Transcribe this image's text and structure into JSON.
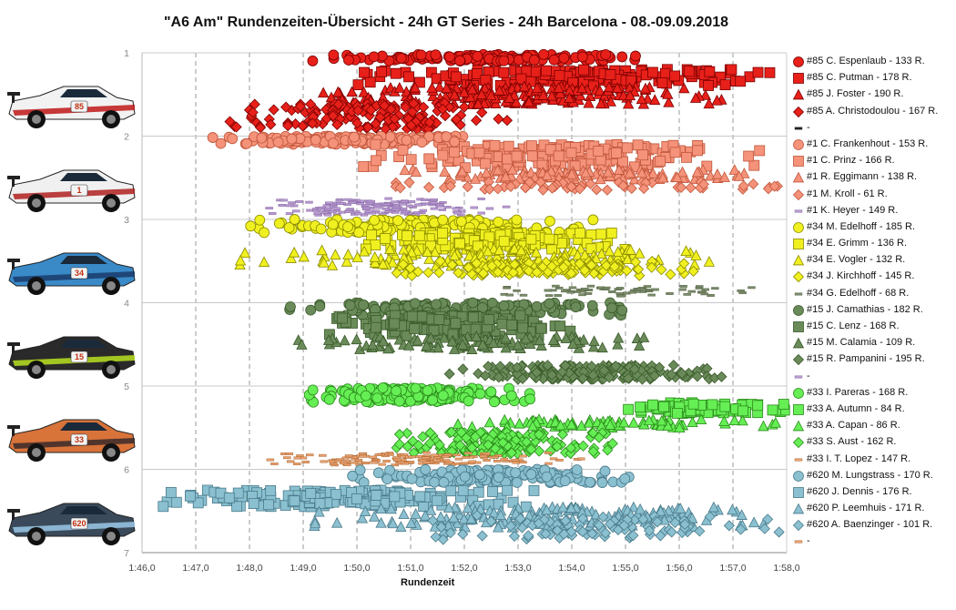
{
  "title": "\"A6 Am\"  Rundenzeiten-Übersicht  - 24h GT Series  - 24h Barcelona  - 08.-09.09.2018",
  "chart_data": {
    "type": "scatter",
    "xlabel": "Rundenzeit",
    "xlim": [
      "1:46,0",
      "1:58,0"
    ],
    "x_ticks": [
      "1:46,0",
      "1:47,0",
      "1:48,0",
      "1:49,0",
      "1:50,0",
      "1:51,0",
      "1:52,0",
      "1:53,0",
      "1:54,0",
      "1:55,0",
      "1:56,0",
      "1:57,0",
      "1:58,0"
    ],
    "ylim": [
      1,
      7
    ],
    "y_ticks": [
      "1",
      "2",
      "3",
      "4",
      "5",
      "6",
      "7"
    ],
    "grid": "vertical dashed",
    "legend_position": "right",
    "series": [
      {
        "name": "#85 C. Espenlaub - 133 R.",
        "team": 1,
        "marker": "circle",
        "color": "#e8201a",
        "edge": "#7a0000",
        "y": [
          1.02,
          1.1
        ],
        "x": [
          109.0,
          115.7
        ],
        "n": 133
      },
      {
        "name": "#85 C. Putman - 178 R.",
        "team": 1,
        "marker": "square",
        "color": "#e8201a",
        "edge": "#7a0000",
        "y": [
          1.2,
          1.4
        ],
        "x": [
          110.0,
          117.9
        ],
        "n": 178
      },
      {
        "name": "#85 J. Foster - 190 R.",
        "team": 1,
        "marker": "triangle",
        "color": "#e8201a",
        "edge": "#7a0000",
        "y": [
          1.4,
          1.62
        ],
        "x": [
          109.0,
          116.9
        ],
        "n": 190
      },
      {
        "name": "#85 A. Christodoulou - 167 R.",
        "team": 1,
        "marker": "diamond",
        "color": "#e8201a",
        "edge": "#7a0000",
        "y": [
          1.6,
          1.92
        ],
        "x": [
          107.3,
          113.0
        ],
        "n": 167
      },
      {
        "name": "-",
        "team": 1,
        "marker": "dash",
        "color": "#222222",
        "edge": "#222222",
        "y": [
          1.9,
          1.9
        ],
        "x": [
          107,
          107
        ],
        "n": 0
      },
      {
        "name": "#1 C. Frankenhout - 153 R.",
        "team": 2,
        "marker": "circle",
        "color": "#f4927a",
        "edge": "#c0553a",
        "y": [
          2.0,
          2.1
        ],
        "x": [
          107.3,
          112.4
        ],
        "n": 153
      },
      {
        "name": "#1 C. Prinz - 166 R.",
        "team": 2,
        "marker": "square",
        "color": "#f4927a",
        "edge": "#c0553a",
        "y": [
          2.1,
          2.38
        ],
        "x": [
          110.1,
          117.5
        ],
        "n": 166
      },
      {
        "name": "#1 R. Eggimann - 138 R.",
        "team": 2,
        "marker": "triangle",
        "color": "#f4927a",
        "edge": "#c0553a",
        "y": [
          2.4,
          2.52
        ],
        "x": [
          110.8,
          117.6
        ],
        "n": 138
      },
      {
        "name": "#1 M. Kroll - 61 R.",
        "team": 2,
        "marker": "diamond",
        "color": "#f4927a",
        "edge": "#c0553a",
        "y": [
          2.55,
          2.65
        ],
        "x": [
          110.2,
          117.9
        ],
        "n": 61
      },
      {
        "name": "#1 K. Heyer - 149 R.",
        "team": 2,
        "marker": "dash",
        "color": "#b89ad0",
        "edge": "#7a5a9a",
        "y": [
          2.75,
          2.95
        ],
        "x": [
          108.3,
          112.8
        ],
        "n": 149
      },
      {
        "name": "#34 M. Edelhoff - 185 R.",
        "team": 3,
        "marker": "circle",
        "color": "#f0f020",
        "edge": "#8a8a00",
        "y": [
          3.0,
          3.16
        ],
        "x": [
          108.0,
          114.4
        ],
        "n": 185
      },
      {
        "name": "#34 E. Grimm - 136 R.",
        "team": 3,
        "marker": "square",
        "color": "#f0f020",
        "edge": "#8a8a00",
        "y": [
          3.16,
          3.36
        ],
        "x": [
          110.1,
          115.1
        ],
        "n": 136
      },
      {
        "name": "#34 E. Vogler - 132 R.",
        "team": 3,
        "marker": "triangle",
        "color": "#f0f020",
        "edge": "#8a8a00",
        "y": [
          3.35,
          3.56
        ],
        "x": [
          107.6,
          117.1
        ],
        "n": 132
      },
      {
        "name": "#34 J. Kirchhoff - 145 R.",
        "team": 3,
        "marker": "diamond",
        "color": "#f0f020",
        "edge": "#8a8a00",
        "y": [
          3.5,
          3.68
        ],
        "x": [
          110.6,
          116.3
        ],
        "n": 145
      },
      {
        "name": "#34 G. Edelhoff - 68 R.",
        "team": 3,
        "marker": "dash",
        "color": "#7a8a6a",
        "edge": "#4a5a3a",
        "y": [
          3.8,
          3.92
        ],
        "x": [
          111.6,
          117.9
        ],
        "n": 68
      },
      {
        "name": "#15 J. Camathias - 182 R.",
        "team": 4,
        "marker": "circle",
        "color": "#6a8a5a",
        "edge": "#3a5a2a",
        "y": [
          4.0,
          4.16
        ],
        "x": [
          108.7,
          115.1
        ],
        "n": 182
      },
      {
        "name": "#15 C. Lenz - 168 R.",
        "team": 4,
        "marker": "square",
        "color": "#6a8a5a",
        "edge": "#3a5a2a",
        "y": [
          4.15,
          4.4
        ],
        "x": [
          109.1,
          114.0
        ],
        "n": 168
      },
      {
        "name": "#15 M. Calamia - 109 R.",
        "team": 4,
        "marker": "triangle",
        "color": "#6a8a5a",
        "edge": "#3a5a2a",
        "y": [
          4.4,
          4.56
        ],
        "x": [
          108.7,
          115.4
        ],
        "n": 109
      },
      {
        "name": "#15 R. Pampanini - 195 R.",
        "team": 4,
        "marker": "diamond",
        "color": "#6a8a5a",
        "edge": "#3a5a2a",
        "y": [
          4.75,
          4.92
        ],
        "x": [
          111.7,
          116.9
        ],
        "n": 195
      },
      {
        "name": "-",
        "team": 4,
        "marker": "dash",
        "color": "#b89ad0",
        "edge": "#7a5a9a",
        "y": [
          4.9,
          4.9
        ],
        "x": [
          107,
          107
        ],
        "n": 0
      },
      {
        "name": "#33 I. Pareras - 168 R.",
        "team": 5,
        "marker": "circle",
        "color": "#66ee55",
        "edge": "#2a8a1a",
        "y": [
          5.02,
          5.2
        ],
        "x": [
          108.8,
          113.4
        ],
        "n": 168
      },
      {
        "name": "#33 A. Autumn - 84 R.",
        "team": 5,
        "marker": "square",
        "color": "#66ee55",
        "edge": "#2a8a1a",
        "y": [
          5.2,
          5.33
        ],
        "x": [
          114.9,
          118.0
        ],
        "n": 84
      },
      {
        "name": "#33 A. Capan - 86 R.",
        "team": 5,
        "marker": "triangle",
        "color": "#66ee55",
        "edge": "#2a8a1a",
        "y": [
          5.4,
          5.5
        ],
        "x": [
          111.5,
          117.9
        ],
        "n": 86
      },
      {
        "name": "#33 S. Aust - 162 R.",
        "team": 5,
        "marker": "diamond",
        "color": "#66ee55",
        "edge": "#2a8a1a",
        "y": [
          5.55,
          5.82
        ],
        "x": [
          110.5,
          114.8
        ],
        "n": 162
      },
      {
        "name": "#33 I. T. Lopez - 147 R.",
        "team": 5,
        "marker": "dash",
        "color": "#e8a070",
        "edge": "#a05a20",
        "y": [
          5.8,
          5.95
        ],
        "x": [
          108.3,
          114.2
        ],
        "n": 147
      },
      {
        "name": "#620 M. Lungstrass - 170 R.",
        "team": 6,
        "marker": "circle",
        "color": "#8ac0d0",
        "edge": "#4a7a8a",
        "y": [
          6.0,
          6.16
        ],
        "x": [
          109.9,
          115.3
        ],
        "n": 170
      },
      {
        "name": "#620 J. Dennis - 176 R.",
        "team": 6,
        "marker": "square",
        "color": "#8ac0d0",
        "edge": "#4a7a8a",
        "y": [
          6.25,
          6.45
        ],
        "x": [
          106.3,
          113.3
        ],
        "n": 176
      },
      {
        "name": "#620 P. Leemhuis - 171 R.",
        "team": 6,
        "marker": "triangle",
        "color": "#8ac0d0",
        "edge": "#4a7a8a",
        "y": [
          6.45,
          6.7
        ],
        "x": [
          109.0,
          117.9
        ],
        "n": 171
      },
      {
        "name": "#620 A. Baenzinger - 101 R.",
        "team": 6,
        "marker": "diamond",
        "color": "#8ac0d0",
        "edge": "#4a7a8a",
        "y": [
          6.55,
          6.85
        ],
        "x": [
          111.1,
          117.9
        ],
        "n": 101
      },
      {
        "name": "-",
        "team": 6,
        "marker": "dash",
        "color": "#e8a070",
        "edge": "#a05a20",
        "y": [
          6.9,
          6.9
        ],
        "x": [
          107,
          107
        ],
        "n": 0
      }
    ],
    "cars": [
      {
        "number": "85",
        "body": "#f2f2f2",
        "stripe": "#c01818"
      },
      {
        "number": "1",
        "body": "#f0f0f0",
        "stripe": "#b02020"
      },
      {
        "number": "34",
        "body": "#3a8ac8",
        "stripe": "#1a3a6a"
      },
      {
        "number": "15",
        "body": "#2a2a2a",
        "stripe": "#b8e020"
      },
      {
        "number": "33",
        "body": "#d8733a",
        "stripe": "#3a2a2a"
      },
      {
        "number": "620",
        "body": "#3a4a5a",
        "stripe": "#9ac8e8"
      }
    ]
  }
}
